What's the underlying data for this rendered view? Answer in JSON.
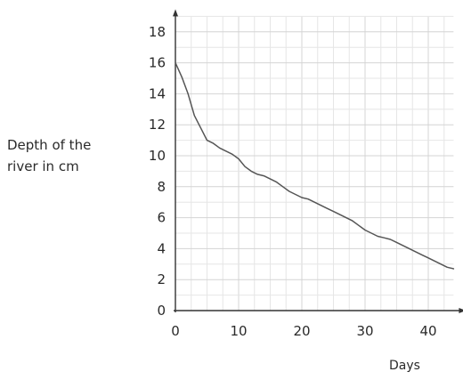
{
  "chart_data": {
    "type": "line",
    "title": "",
    "ylabel_lines": [
      "Depth of the",
      "river in cm"
    ],
    "xlabel": "Days",
    "xlim": [
      0,
      44
    ],
    "ylim": [
      0,
      19
    ],
    "xticks": [
      0,
      10,
      20,
      30,
      40
    ],
    "yticks": [
      0,
      2,
      4,
      6,
      8,
      10,
      12,
      14,
      16,
      18
    ],
    "grid": true,
    "series": [
      {
        "x": [
          0,
          1,
          2,
          3,
          4,
          5,
          6,
          7,
          8,
          9,
          10,
          11,
          12,
          13,
          14,
          15,
          16,
          17,
          18,
          19,
          20,
          21,
          22,
          23,
          24,
          25,
          26,
          27,
          28,
          29,
          30,
          31,
          32,
          33,
          34,
          35,
          36,
          37,
          38,
          39,
          40,
          41,
          42,
          43,
          44
        ],
        "y": [
          16,
          15.1,
          14,
          12.6,
          11.8,
          11,
          10.8,
          10.5,
          10.3,
          10.1,
          9.8,
          9.3,
          9.0,
          8.8,
          8.7,
          8.5,
          8.3,
          8.0,
          7.7,
          7.5,
          7.3,
          7.2,
          7.0,
          6.8,
          6.6,
          6.4,
          6.2,
          6.0,
          5.8,
          5.5,
          5.2,
          5.0,
          4.8,
          4.7,
          4.6,
          4.4,
          4.2,
          4.0,
          3.8,
          3.6,
          3.4,
          3.2,
          3.0,
          2.8,
          2.7
        ]
      }
    ]
  }
}
